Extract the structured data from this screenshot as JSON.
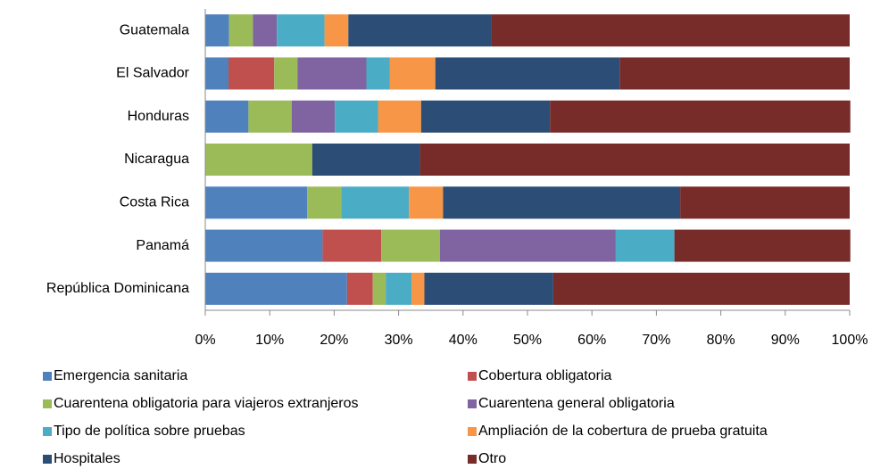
{
  "chart_data": {
    "type": "stacked-bar-horizontal",
    "categories": [
      "Guatemala",
      "El Salvador",
      "Honduras",
      "Nicaragua",
      "Costa Rica",
      "Panamá",
      "República Dominicana"
    ],
    "series": [
      {
        "name": "Emergencia sanitaria",
        "color": "#4f81bd",
        "values": [
          3.7,
          3.6,
          6.7,
          0,
          15.8,
          18.2,
          22
        ]
      },
      {
        "name": "Cobertura obligatoria",
        "color": "#c0504d",
        "values": [
          0,
          7.1,
          0,
          0,
          0,
          9.1,
          4
        ]
      },
      {
        "name": "Cuarentena obligatoria para viajeros extranjeros",
        "color": "#9bbb59",
        "values": [
          3.7,
          3.6,
          6.7,
          16.6,
          5.3,
          9.1,
          2
        ]
      },
      {
        "name": "Cuarentena general obligatoria",
        "color": "#8064a2",
        "values": [
          3.7,
          10.7,
          6.7,
          0,
          0,
          27.3,
          0
        ]
      },
      {
        "name": "Tipo de política sobre pruebas",
        "color": "#4bacc6",
        "values": [
          7.4,
          3.6,
          6.7,
          0,
          10.5,
          9.1,
          4
        ]
      },
      {
        "name": "Ampliación de la cobertura de prueba gratuita",
        "color": "#f79646",
        "values": [
          3.7,
          7.1,
          6.7,
          0,
          5.3,
          0,
          2
        ]
      },
      {
        "name": "Hospitales",
        "color": "#2c4d75",
        "values": [
          22.2,
          28.6,
          20,
          16.7,
          36.8,
          0,
          20
        ]
      },
      {
        "name": "Otro",
        "color": "#772c2a",
        "values": [
          55.6,
          35.7,
          46.6,
          66.7,
          26.3,
          27.3,
          46
        ]
      }
    ],
    "xlim": [
      0,
      100
    ],
    "xticks": [
      {
        "value": 0,
        "label": "0%"
      },
      {
        "value": 10,
        "label": "10%"
      },
      {
        "value": 20,
        "label": "20%"
      },
      {
        "value": 30,
        "label": "30%"
      },
      {
        "value": 40,
        "label": "40%"
      },
      {
        "value": 50,
        "label": "50%"
      },
      {
        "value": 60,
        "label": "60%"
      },
      {
        "value": 70,
        "label": "70%"
      },
      {
        "value": 80,
        "label": "80%"
      },
      {
        "value": 90,
        "label": "90%"
      },
      {
        "value": 100,
        "label": "100%"
      }
    ],
    "legend": "bottom"
  }
}
